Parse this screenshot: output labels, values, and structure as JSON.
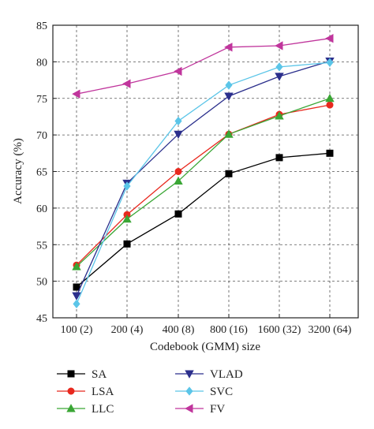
{
  "chart_data": {
    "type": "line",
    "title": "",
    "xlabel": "Codebook (GMM) size",
    "ylabel": "Accuracy (%)",
    "categories": [
      "100 (2)",
      "200 (4)",
      "400 (8)",
      "800 (16)",
      "1600 (32)",
      "3200 (64)"
    ],
    "ylim": [
      45,
      85
    ],
    "yticks": [
      45,
      50,
      55,
      60,
      65,
      70,
      75,
      80,
      85
    ],
    "grid": true,
    "grid_style": "dashed",
    "legend_position": "bottom",
    "series": [
      {
        "name": "SA",
        "color": "#000000",
        "marker": "square",
        "values": [
          49.2,
          55.1,
          59.2,
          64.7,
          66.9,
          67.5
        ]
      },
      {
        "name": "LSA",
        "color": "#e8281e",
        "marker": "circle",
        "values": [
          52.2,
          59.1,
          65.0,
          70.1,
          72.8,
          74.1
        ]
      },
      {
        "name": "LLC",
        "color": "#3aa635",
        "marker": "triangle-up",
        "values": [
          52.0,
          58.5,
          63.7,
          70.1,
          72.6,
          75.0
        ]
      },
      {
        "name": "VLAD",
        "color": "#2b2f8c",
        "marker": "triangle-down",
        "values": [
          48.0,
          63.4,
          70.1,
          75.3,
          78.0,
          80.1
        ]
      },
      {
        "name": "SVC",
        "color": "#5bc5e8",
        "marker": "diamond",
        "values": [
          46.9,
          63.0,
          71.9,
          76.8,
          79.3,
          79.9
        ]
      },
      {
        "name": "FV",
        "color": "#c0359c",
        "marker": "triangle-left",
        "values": [
          75.6,
          77.0,
          78.7,
          82.0,
          82.2,
          83.2
        ]
      }
    ]
  }
}
